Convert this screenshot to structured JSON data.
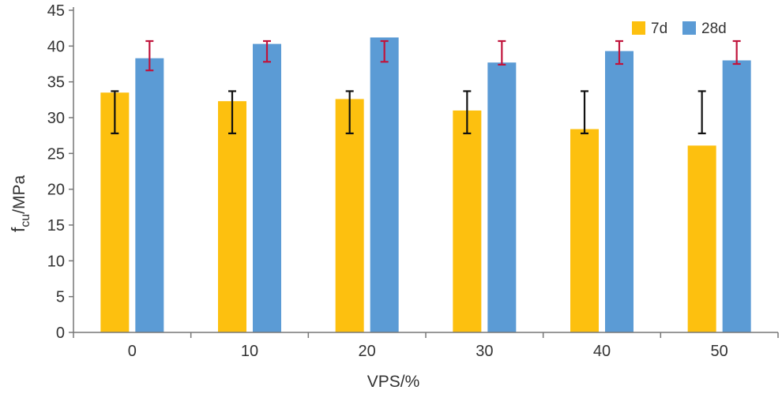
{
  "chart_data": {
    "type": "bar",
    "title": "",
    "xlabel": "VPS/%",
    "ylabel_main": "f",
    "ylabel_sub": "cu",
    "ylabel_unit": "/MPa",
    "categories": [
      "0",
      "10",
      "20",
      "30",
      "40",
      "50"
    ],
    "ylim": [
      0,
      45
    ],
    "yticks": [
      0,
      5,
      10,
      15,
      20,
      25,
      30,
      35,
      40,
      45
    ],
    "grid": false,
    "legend_position": "top-right",
    "series": [
      {
        "name": "7d",
        "color": "#fdc00f",
        "error_color": "#111111",
        "values": [
          33.5,
          32.3,
          32.6,
          31.0,
          28.4,
          26.1
        ],
        "error_low": [
          27.8,
          27.8,
          27.8,
          27.8,
          27.8,
          27.8
        ],
        "error_high": [
          33.7,
          33.7,
          33.7,
          33.7,
          33.7,
          33.7
        ]
      },
      {
        "name": "28d",
        "color": "#5b9bd5",
        "error_color": "#c0143c",
        "values": [
          38.3,
          40.3,
          41.2,
          37.7,
          39.3,
          38.0
        ],
        "error_low": [
          36.6,
          37.8,
          37.8,
          37.4,
          37.5,
          37.5
        ],
        "error_high": [
          40.7,
          40.7,
          40.7,
          40.7,
          40.7,
          40.7
        ]
      }
    ]
  }
}
